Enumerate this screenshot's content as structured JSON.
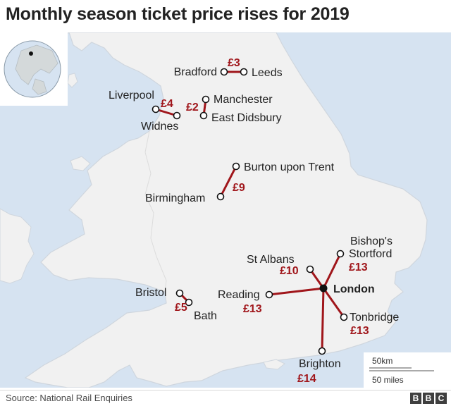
{
  "title": "Monthly season ticket price rises for 2019",
  "source": "Source: National Rail Enquiries",
  "logo": [
    "B",
    "B",
    "C"
  ],
  "colors": {
    "sea": "#d6e3f1",
    "land": "#f1f1f1",
    "coast": "#cfd6de",
    "route": "#a0161b",
    "price_text": "#a0161b"
  },
  "cities": {
    "bradford": "Bradford",
    "leeds": "Leeds",
    "liverpool": "Liverpool",
    "widnes": "Widnes",
    "manchester": "Manchester",
    "east_didsbury": "East Didsbury",
    "burton": "Burton upon Trent",
    "birmingham": "Birmingham",
    "st_albans": "St Albans",
    "bishops_stortford_1": "Bishop's",
    "bishops_stortford_2": "Stortford",
    "london": "London",
    "reading": "Reading",
    "tonbridge": "Tonbridge",
    "bristol": "Bristol",
    "bath": "Bath",
    "brighton": "Brighton"
  },
  "prices": {
    "bradford_leeds": "£3",
    "liverpool_widnes": "£4",
    "manchester_east_didsbury": "£2",
    "burton_birmingham": "£9",
    "st_albans_london": "£10",
    "bishops_stortford_london": "£13",
    "reading_london": "£13",
    "tonbridge_london": "£13",
    "bristol_bath": "£5",
    "brighton_london": "£14"
  },
  "scale": {
    "km": "50km",
    "miles": "50 miles"
  }
}
